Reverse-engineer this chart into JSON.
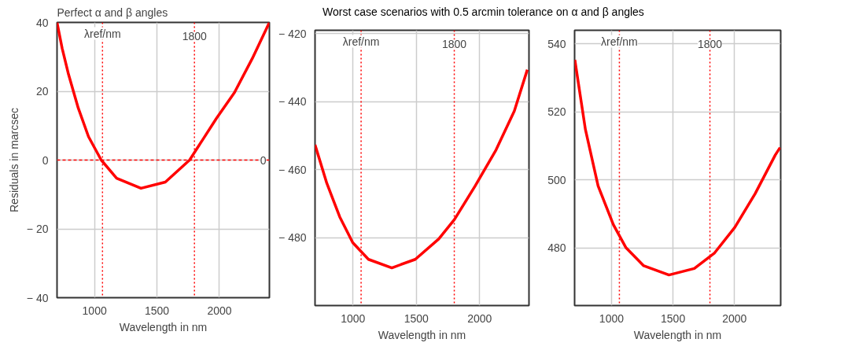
{
  "chart_data": [
    {
      "type": "line",
      "title": "Perfect α and β angles",
      "xlabel": "Wavelength in nm",
      "ylabel": "Residuals in marcsec",
      "xlim": [
        700,
        2400
      ],
      "ylim": [
        -40,
        40
      ],
      "xticks": [
        1000,
        1500,
        2000
      ],
      "yticks": [
        -40,
        -20,
        0,
        20,
        40
      ],
      "grid": true,
      "line_style": "solid",
      "series": [
        {
          "color": "#ff0000",
          "x": [
            700,
            741,
            792,
            870,
            952,
            1054,
            1177,
            1372,
            1567,
            1761,
            1976,
            2120,
            2263,
            2400
          ],
          "values": [
            40,
            32.5,
            24.9,
            15.1,
            6.8,
            0,
            -5.3,
            -8.2,
            -6.4,
            0,
            12.1,
            19.6,
            29.5,
            40
          ]
        }
      ],
      "ref_lines": [
        {
          "axis": "x",
          "value": 1064,
          "label": "λref/nm",
          "color": "#ff0000",
          "line_style": "dotted"
        },
        {
          "axis": "x",
          "value": 1800,
          "label": "1800",
          "color": "#ff0000",
          "line_style": "dotted"
        },
        {
          "axis": "y",
          "value": 0,
          "label": "0",
          "color": "#ff0000",
          "line_style": "dashed"
        }
      ]
    },
    {
      "type": "line",
      "title": "Worst case scenarios with 0.5 arcmin tolerance on α and β angles",
      "xlabel": "Wavelength in nm",
      "xlim": [
        700,
        2390
      ],
      "ylim": [
        -500,
        -419
      ],
      "xticks": [
        1000,
        1500,
        2000
      ],
      "yticks": [
        -480,
        -460,
        -440,
        -420
      ],
      "grid": true,
      "line_style": "solid",
      "series": [
        {
          "color": "#ff0000",
          "x": [
            700,
            793,
            895,
            998,
            1122,
            1307,
            1492,
            1677,
            1801,
            1965,
            2130,
            2274,
            2377
          ],
          "values": [
            -452.7,
            -464,
            -473.9,
            -481.5,
            -486.4,
            -488.9,
            -486.4,
            -480.4,
            -474.7,
            -464.8,
            -454.2,
            -442.8,
            -430.6
          ]
        }
      ],
      "ref_lines": [
        {
          "axis": "x",
          "value": 1064,
          "label": "λref/nm",
          "color": "#ff0000",
          "line_style": "dotted"
        },
        {
          "axis": "x",
          "value": 1800,
          "label": "1800",
          "color": "#ff0000",
          "line_style": "dotted"
        }
      ]
    },
    {
      "type": "line",
      "xlabel": "Wavelength in nm",
      "xlim": [
        700,
        2375
      ],
      "ylim": [
        463,
        544
      ],
      "xticks": [
        1000,
        1500,
        2000
      ],
      "yticks": [
        480,
        500,
        520,
        540
      ],
      "grid": true,
      "line_style": "solid",
      "series": [
        {
          "color": "#ff0000",
          "x": [
            702,
            788,
            891,
            1015,
            1118,
            1262,
            1467,
            1673,
            1838,
            2002,
            2167,
            2331,
            2370
          ],
          "values": [
            535.3,
            514.8,
            498.2,
            486.8,
            480,
            474.7,
            472,
            473.9,
            478.5,
            486,
            495.9,
            507.3,
            509.5
          ]
        }
      ],
      "ref_lines": [
        {
          "axis": "x",
          "value": 1064,
          "label": "λref/nm",
          "color": "#ff0000",
          "line_style": "dotted"
        },
        {
          "axis": "x",
          "value": 1800,
          "label": "1800",
          "color": "#ff0000",
          "line_style": "dotted"
        }
      ]
    }
  ]
}
